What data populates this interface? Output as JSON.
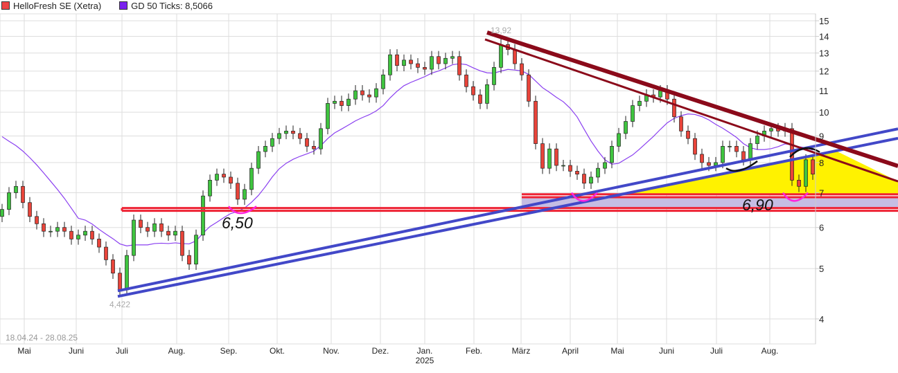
{
  "legend": {
    "series_label": "HelloFresh SE (Xetra)",
    "series_color": "#ee4444",
    "ma_label": "GD 50 Ticks: 8,5066",
    "ma_color": "#7a22ee"
  },
  "chart_data": {
    "type": "candlestick",
    "title": "HelloFresh SE (Xetra)",
    "date_range": "18.04.24 - 28.08.25",
    "y_scale": "log",
    "ylim": [
      3.5,
      15.5
    ],
    "y_ticks": [
      "15",
      "14",
      "13",
      "12",
      "11",
      "10",
      "9",
      "8",
      "7",
      "6",
      "5",
      "4"
    ],
    "x_ticks": [
      {
        "label": "Mai",
        "i": 3.2
      },
      {
        "label": "Juni",
        "i": 10.7
      },
      {
        "label": "Juli",
        "i": 17.3
      },
      {
        "label": "Aug.",
        "i": 25.2
      },
      {
        "label": "Sep.",
        "i": 32.7
      },
      {
        "label": "Okt.",
        "i": 39.7
      },
      {
        "label": "Nov.",
        "i": 47.5
      },
      {
        "label": "Dez.",
        "i": 54.6
      },
      {
        "label": "Jan.",
        "i": 61.0
      },
      {
        "label": "Feb.",
        "i": 68.1
      },
      {
        "label": "März",
        "i": 74.9
      },
      {
        "label": "April",
        "i": 82.0
      },
      {
        "label": "Mai",
        "i": 88.8
      },
      {
        "label": "Juni",
        "i": 95.9
      },
      {
        "label": "Juli",
        "i": 103.1
      },
      {
        "label": "Aug.",
        "i": 110.8
      }
    ],
    "year_label": "2025",
    "closes": [
      6.5,
      7.0,
      7.2,
      6.7,
      6.3,
      6.1,
      5.9,
      5.9,
      6.0,
      5.9,
      5.7,
      5.8,
      5.9,
      5.7,
      5.5,
      5.2,
      4.9,
      4.55,
      5.3,
      6.2,
      6.0,
      5.9,
      6.1,
      5.9,
      5.8,
      5.9,
      5.3,
      5.1,
      5.8,
      6.9,
      7.4,
      7.6,
      7.5,
      7.3,
      6.8,
      7.1,
      7.8,
      8.4,
      8.6,
      8.9,
      9.1,
      9.2,
      9.1,
      8.9,
      8.6,
      8.5,
      9.3,
      10.4,
      10.5,
      10.3,
      10.6,
      11.0,
      10.8,
      10.7,
      11.1,
      11.8,
      12.9,
      12.3,
      12.6,
      12.4,
      12.2,
      12.1,
      12.8,
      12.4,
      12.7,
      12.8,
      11.8,
      11.2,
      10.8,
      10.4,
      11.3,
      12.2,
      13.5,
      13.2,
      12.4,
      11.8,
      10.5,
      8.7,
      7.8,
      8.5,
      7.9,
      7.9,
      7.7,
      7.6,
      7.3,
      7.5,
      7.8,
      8.0,
      8.6,
      9.1,
      9.6,
      10.3,
      10.5,
      10.8,
      10.7,
      11.0,
      10.6,
      9.8,
      9.2,
      8.9,
      8.3,
      8.0,
      7.9,
      8.0,
      8.6,
      8.6,
      8.4,
      8.1,
      8.7,
      9.0,
      9.2,
      9.3,
      9.2,
      9.3,
      7.4,
      7.2,
      8.1,
      7.6
    ],
    "first_open": 6.3,
    "ma_window": 12,
    "ma_start": 9.2,
    "high_label": "13,92",
    "low_label": "4,422",
    "annotations": {
      "blue_lines": [
        [
          [
            16.7,
            4.42
          ],
          [
            129.3,
            8.91
          ]
        ],
        [
          [
            16.7,
            4.53
          ],
          [
            129.3,
            9.29
          ]
        ]
      ],
      "red_lines": [
        [
          [
            70,
            14.24
          ],
          [
            129.3,
            7.88
          ],
          "thick"
        ],
        [
          [
            69.7,
            13.81
          ],
          [
            129.3,
            7.36
          ],
          "thin"
        ]
      ],
      "support_upper": {
        "from": 75,
        "to": 129.3,
        "prices": [
          6.95,
          6.86
        ]
      },
      "support_lower": {
        "from": 17.3,
        "to": 129.3,
        "prices": [
          6.54,
          6.46
        ]
      },
      "yellow": [
        [
          89.3,
          6.95
        ],
        [
          120.4,
          8.42
        ],
        [
          129.3,
          7.36
        ],
        [
          129.3,
          6.95
        ]
      ],
      "lilac": [
        [
          75,
          6.86
        ],
        [
          129.3,
          6.86
        ],
        [
          129.3,
          6.54
        ],
        [
          75,
          6.54
        ]
      ],
      "magenta_curves": [
        [
          [
            32.7,
            6.59
          ],
          [
            34.2,
            6.39
          ],
          [
            36.7,
            6.59
          ]
        ],
        [
          [
            82.2,
            7.0
          ],
          [
            83.7,
            6.75
          ],
          [
            85.9,
            7.0
          ]
        ],
        [
          [
            112.7,
            7.0
          ],
          [
            114.2,
            6.75
          ],
          [
            116.3,
            7.0
          ]
        ]
      ],
      "black_curves": [
        [
          [
            104.5,
            7.8
          ],
          [
            106.2,
            7.73
          ],
          [
            109,
            8.05
          ]
        ],
        [
          [
            113.7,
            8.2
          ],
          [
            115.7,
            8.52
          ],
          [
            118,
            8.38
          ]
        ]
      ],
      "text_650": "6,50",
      "text_690": "6,90"
    }
  }
}
